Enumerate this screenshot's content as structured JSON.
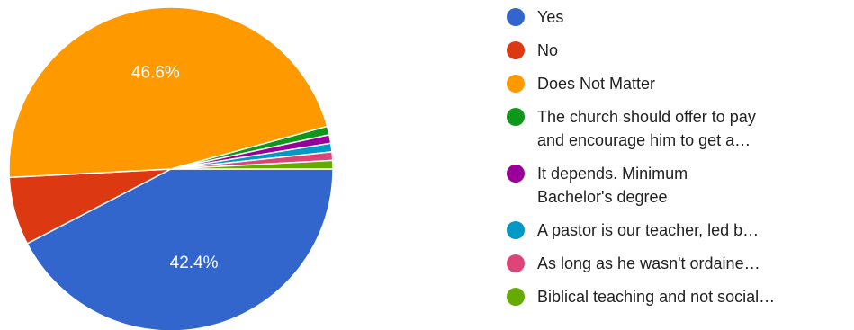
{
  "chart_data": {
    "type": "pie",
    "slices": [
      {
        "label": "Yes",
        "value": 42.4,
        "display": "42.4%",
        "color": "#3366cc"
      },
      {
        "label": "No",
        "value": 6.8,
        "display": "",
        "color": "#dc3912"
      },
      {
        "label": "Does Not Matter",
        "value": 46.6,
        "display": "46.6%",
        "color": "#ff9900"
      },
      {
        "label": "The church should offer to pay\nand encourage him to get a…",
        "value": 0.85,
        "display": "",
        "color": "#109618"
      },
      {
        "label": "It depends. Minimum\nBachelor's degree",
        "value": 0.85,
        "display": "",
        "color": "#990099"
      },
      {
        "label": "A pastor is our teacher, led b…",
        "value": 0.85,
        "display": "",
        "color": "#0099c6"
      },
      {
        "label": "As long as he wasn't ordaine…",
        "value": 0.85,
        "display": "",
        "color": "#dd4477"
      },
      {
        "label": "Biblical teaching and not social…",
        "value": 0.85,
        "display": "",
        "color": "#66aa00"
      }
    ],
    "legend_position": "right"
  }
}
